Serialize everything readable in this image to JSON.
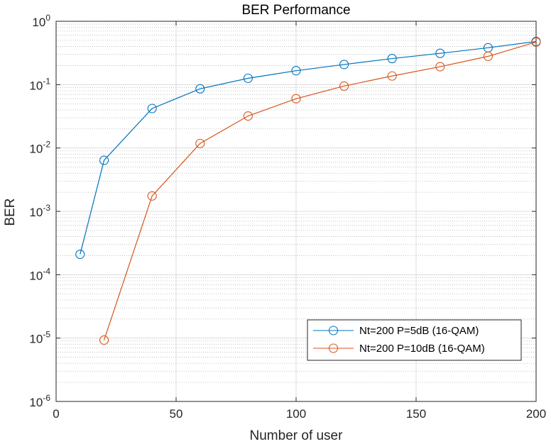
{
  "chart_data": {
    "type": "line",
    "title": "BER Performance",
    "xlabel": "Number of user",
    "ylabel": "BER",
    "xlim": [
      0,
      200
    ],
    "ylim": [
      1e-06,
      1
    ],
    "yscale": "log",
    "grid": true,
    "minor_grid": true,
    "legend_position": "bottom-right",
    "x_ticks": [
      {
        "value": 0,
        "label": "0"
      },
      {
        "value": 50,
        "label": "50"
      },
      {
        "value": 100,
        "label": "100"
      },
      {
        "value": 150,
        "label": "150"
      },
      {
        "value": 200,
        "label": "200"
      }
    ],
    "y_ticks": [
      {
        "value": 1,
        "base": "10",
        "exp": "0"
      },
      {
        "value": 0.1,
        "base": "10",
        "exp": "-1"
      },
      {
        "value": 0.01,
        "base": "10",
        "exp": "-2"
      },
      {
        "value": 0.001,
        "base": "10",
        "exp": "-3"
      },
      {
        "value": 0.0001,
        "base": "10",
        "exp": "-4"
      },
      {
        "value": 1e-05,
        "base": "10",
        "exp": "-5"
      },
      {
        "value": 1e-06,
        "base": "10",
        "exp": "-6"
      }
    ],
    "series": [
      {
        "name": "Nt=200 P=5dB (16-QAM)",
        "color": "#0072BD",
        "marker": "circle",
        "x": [
          10,
          20,
          40,
          60,
          80,
          100,
          120,
          140,
          160,
          180,
          200
        ],
        "y": [
          0.00021,
          0.0064,
          0.042,
          0.086,
          0.126,
          0.166,
          0.208,
          0.258,
          0.312,
          0.382,
          0.48
        ]
      },
      {
        "name": "Nt=200 P=10dB (16-QAM)",
        "color": "#D95319",
        "marker": "circle",
        "x": [
          20,
          40,
          60,
          80,
          100,
          120,
          140,
          160,
          180,
          200
        ],
        "y": [
          9.3e-06,
          0.00175,
          0.0118,
          0.032,
          0.06,
          0.095,
          0.137,
          0.192,
          0.28,
          0.47
        ]
      }
    ]
  }
}
